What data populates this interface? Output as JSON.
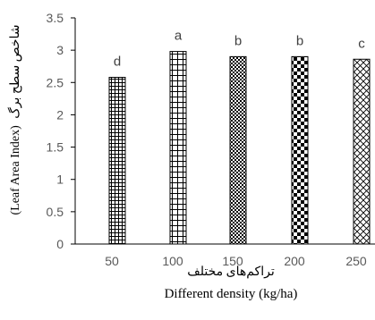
{
  "chart_data": {
    "type": "bar",
    "categories": [
      "50",
      "100",
      "150",
      "200",
      "250"
    ],
    "values": [
      2.58,
      2.98,
      2.9,
      2.9,
      2.86
    ],
    "data_labels": [
      "d",
      "a",
      "b",
      "b",
      "c"
    ],
    "patterns": [
      "small-grid",
      "large-grid",
      "checker-fine",
      "checker-coarse",
      "diamond-cross"
    ],
    "ylim": [
      0,
      3.5
    ],
    "yticks": [
      "0",
      "0.5",
      "1",
      "1.5",
      "2",
      "2.5",
      "3",
      "3.5"
    ],
    "xlabel_fa": "تراکم‌های مختلف",
    "xlabel": "Different density (kg/ha)",
    "ylabel_fa": "شاخص سطح برگ",
    "ylabel": "(Leaf Area Index)",
    "grid": false,
    "colors": {
      "bar_fill": "#ffffff",
      "bar_pattern": "#000000",
      "axis": "#000000",
      "text": "#595959"
    }
  }
}
